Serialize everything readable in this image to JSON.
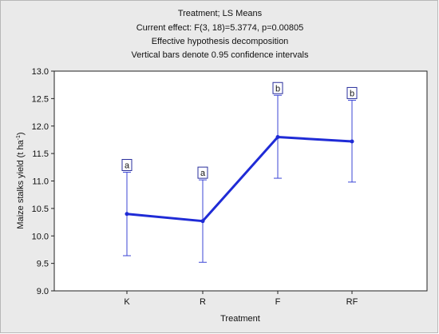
{
  "chart_data": {
    "type": "line",
    "title": "Treatment; LS Means",
    "subtitle_lines": [
      "Current effect: F(3, 18)=5.3774, p=0.00805",
      "Effective hypothesis decomposition",
      "Vertical bars denote 0.95 confidence intervals"
    ],
    "xlabel": "Treatment",
    "ylabel": "Maize stalks yield (t ha",
    "ylabel_superscript": "-1",
    "ylabel_suffix": ")",
    "categories": [
      "K",
      "R",
      "F",
      "RF"
    ],
    "means": [
      10.4,
      10.27,
      11.8,
      11.72
    ],
    "ci_lower": [
      9.64,
      9.52,
      11.05,
      10.98
    ],
    "ci_upper": [
      11.16,
      11.02,
      12.56,
      12.47
    ],
    "group_letters": [
      "a",
      "a",
      "b",
      "b"
    ],
    "ylim": [
      9.0,
      13.0
    ],
    "yticks": [
      "9.0",
      "9.5",
      "10.0",
      "10.5",
      "11.0",
      "11.5",
      "12.0",
      "12.5",
      "13.0"
    ],
    "grid": false,
    "line_color": "#1f2bd6",
    "errorbar_color": "#3b46d6"
  }
}
